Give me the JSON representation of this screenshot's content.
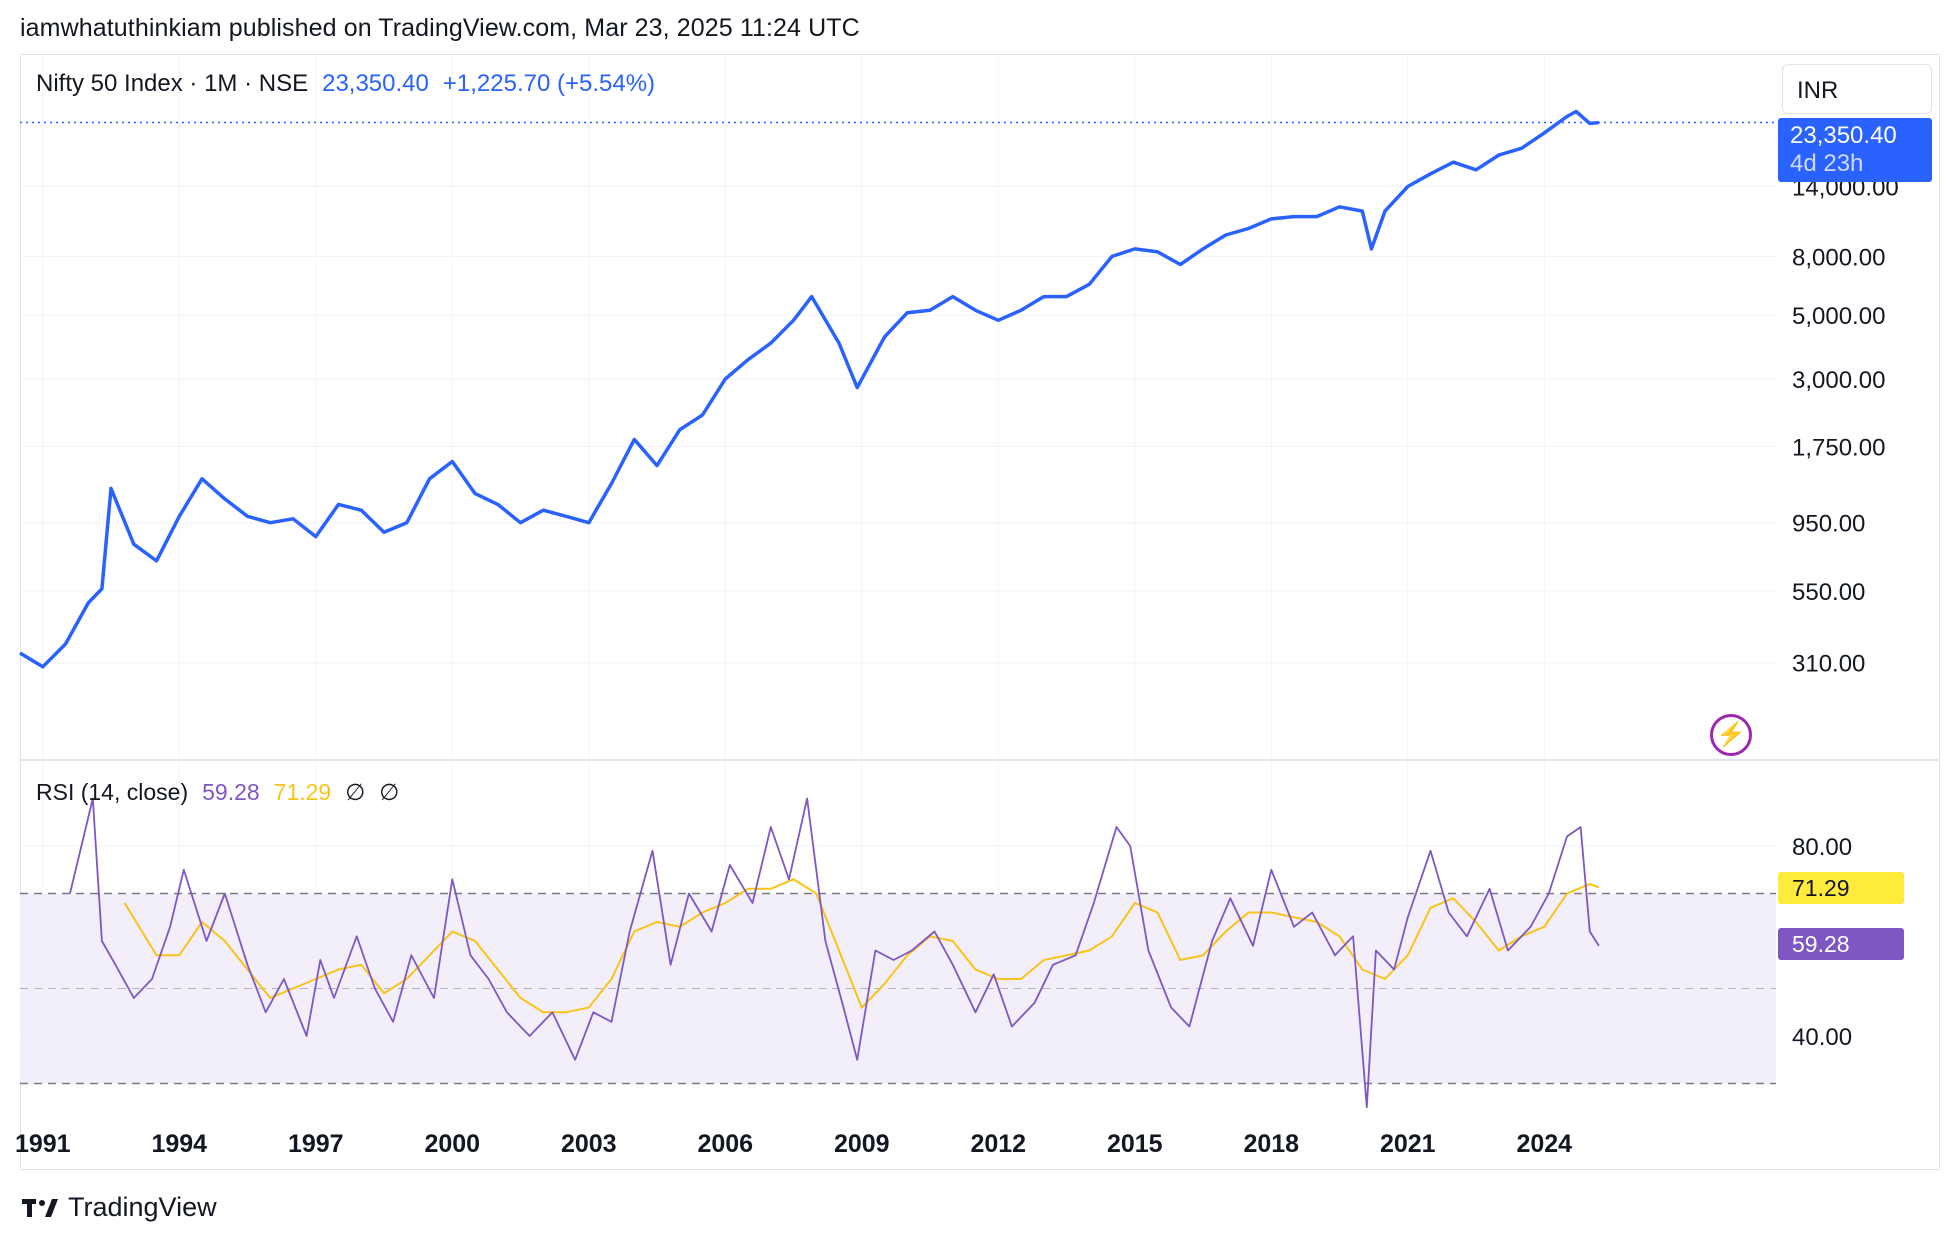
{
  "publish_line": "iamwhatuthinkiam published on TradingView.com, Mar 23, 2025 11:24 UTC",
  "legend": {
    "symbol": "Nifty 50 Index · 1M · NSE",
    "price": "23,350.40",
    "change": "+1,225.70 (+5.54%)"
  },
  "currency": "INR",
  "price_tag": {
    "price": "23,350.40",
    "countdown": "4d 23h"
  },
  "rsi_legend": {
    "name": "RSI (14, close)",
    "rsi": "59.28",
    "ma": "71.29",
    "sym1": "∅",
    "sym2": "∅"
  },
  "rsi_tags": {
    "ma": "71.29",
    "rsi": "59.28"
  },
  "footer_brand": "TradingView",
  "icons": {
    "logo": "tradingview-logo-icon",
    "bolt": "lightning-icon"
  },
  "colors": {
    "price_line": "#2962ff",
    "rsi_line": "#7e57c2",
    "ma_line": "#f9c31a",
    "rsi_band": "#f3effa"
  },
  "chart_data": [
    {
      "type": "line",
      "title": "Nifty 50 Index · 1M · NSE",
      "scale": "log",
      "y_ticks": [
        310,
        550,
        950,
        1750,
        3000,
        5000,
        8000,
        14000
      ],
      "y_tick_labels": [
        "310.00",
        "550.00",
        "950.00",
        "1,750.00",
        "3,000.00",
        "5,000.00",
        "8,000.00",
        "14,000.00"
      ],
      "x_ticks": [
        1991,
        1994,
        1997,
        2000,
        2003,
        2006,
        2009,
        2012,
        2015,
        2018,
        2021,
        2024
      ],
      "last_value": 23350.4,
      "series": [
        {
          "x": [
            1990.5,
            1991.0,
            1991.5,
            1992.0,
            1992.3,
            1992.5,
            1993.0,
            1993.5,
            1994.0,
            1994.5,
            1995.0,
            1995.5,
            1996.0,
            1996.5,
            1997.0,
            1997.5,
            1998.0,
            1998.5,
            1999.0,
            1999.5,
            2000.0,
            2000.5,
            2001.0,
            2001.5,
            2002.0,
            2002.5,
            2003.0,
            2003.5,
            2004.0,
            2004.5,
            2005.0,
            2005.5,
            2006.0,
            2006.5,
            2007.0,
            2007.5,
            2007.9,
            2008.5,
            2008.9,
            2009.5,
            2010.0,
            2010.5,
            2011.0,
            2011.5,
            2012.0,
            2012.5,
            2013.0,
            2013.5,
            2014.0,
            2014.5,
            2015.0,
            2015.5,
            2016.0,
            2016.5,
            2017.0,
            2017.5,
            2018.0,
            2018.5,
            2019.0,
            2019.5,
            2020.0,
            2020.2,
            2020.5,
            2021.0,
            2021.5,
            2022.0,
            2022.5,
            2023.0,
            2023.5,
            2024.0,
            2024.5,
            2024.7,
            2025.0,
            2025.2
          ],
          "y": [
            335,
            300,
            360,
            500,
            560,
            1250,
            800,
            700,
            1000,
            1350,
            1150,
            1000,
            950,
            980,
            850,
            1100,
            1050,
            880,
            950,
            1350,
            1550,
            1200,
            1100,
            950,
            1050,
            1000,
            950,
            1300,
            1850,
            1500,
            2000,
            2250,
            3000,
            3500,
            4000,
            4800,
            5800,
            4000,
            2800,
            4200,
            5100,
            5200,
            5800,
            5200,
            4800,
            5200,
            5800,
            5800,
            6400,
            8000,
            8500,
            8300,
            7500,
            8500,
            9500,
            10000,
            10800,
            11000,
            11000,
            11900,
            11500,
            8500,
            11500,
            14000,
            15500,
            17000,
            16000,
            18000,
            19000,
            21500,
            24500,
            25500,
            23200,
            23350
          ]
        }
      ]
    },
    {
      "type": "line",
      "title": "RSI (14, close)",
      "y_ticks": [
        40,
        80
      ],
      "y_tick_labels": [
        "40.00",
        "80.00"
      ],
      "bands": [
        70,
        50,
        30
      ],
      "series": [
        {
          "name": "RSI (14, close)",
          "x": [
            1991.6,
            1992.1,
            1992.3,
            1992.6,
            1993.0,
            1993.4,
            1993.8,
            1994.1,
            1994.6,
            1995.0,
            1995.5,
            1995.9,
            1996.3,
            1996.8,
            1997.1,
            1997.4,
            1997.9,
            1998.3,
            1998.7,
            1999.1,
            1999.6,
            2000.0,
            2000.4,
            2000.8,
            2001.2,
            2001.7,
            2002.2,
            2002.7,
            2003.1,
            2003.5,
            2003.9,
            2004.4,
            2004.8,
            2005.2,
            2005.7,
            2006.1,
            2006.6,
            2007.0,
            2007.4,
            2007.8,
            2008.2,
            2008.6,
            2008.9,
            2009.3,
            2009.7,
            2010.1,
            2010.6,
            2011.0,
            2011.5,
            2011.9,
            2012.3,
            2012.8,
            2013.2,
            2013.7,
            2014.1,
            2014.6,
            2014.9,
            2015.3,
            2015.8,
            2016.2,
            2016.7,
            2017.1,
            2017.6,
            2018.0,
            2018.5,
            2018.9,
            2019.4,
            2019.8,
            2020.1,
            2020.3,
            2020.7,
            2021.0,
            2021.5,
            2021.9,
            2022.3,
            2022.8,
            2023.2,
            2023.7,
            2024.1,
            2024.5,
            2024.8,
            2025.0,
            2025.2
          ],
          "y": [
            70,
            90,
            60,
            55,
            48,
            52,
            63,
            75,
            60,
            70,
            55,
            45,
            52,
            40,
            56,
            48,
            61,
            50,
            43,
            57,
            48,
            73,
            57,
            52,
            45,
            40,
            45,
            35,
            45,
            43,
            62,
            79,
            55,
            70,
            62,
            76,
            68,
            84,
            73,
            90,
            60,
            46,
            35,
            58,
            56,
            58,
            62,
            55,
            45,
            53,
            42,
            47,
            55,
            57,
            68,
            84,
            80,
            58,
            46,
            42,
            60,
            69,
            59,
            75,
            63,
            66,
            57,
            61,
            25,
            58,
            54,
            65,
            79,
            66,
            61,
            71,
            58,
            63,
            70,
            82,
            84,
            62,
            59
          ]
        },
        {
          "name": "MA",
          "x": [
            1992.8,
            1993.5,
            1994.0,
            1994.5,
            1995.0,
            1995.5,
            1996.0,
            1996.5,
            1997.0,
            1997.5,
            1998.0,
            1998.5,
            1999.0,
            1999.5,
            2000.0,
            2000.5,
            2001.0,
            2001.5,
            2002.0,
            2002.5,
            2003.0,
            2003.5,
            2004.0,
            2004.5,
            2005.0,
            2005.5,
            2006.0,
            2006.5,
            2007.0,
            2007.5,
            2008.0,
            2008.5,
            2009.0,
            2009.5,
            2010.0,
            2010.5,
            2011.0,
            2011.5,
            2012.0,
            2012.5,
            2013.0,
            2013.5,
            2014.0,
            2014.5,
            2015.0,
            2015.5,
            2016.0,
            2016.5,
            2017.0,
            2017.5,
            2018.0,
            2018.5,
            2019.0,
            2019.5,
            2020.0,
            2020.5,
            2021.0,
            2021.5,
            2022.0,
            2022.5,
            2023.0,
            2023.5,
            2024.0,
            2024.5,
            2025.0,
            2025.2
          ],
          "y": [
            68,
            57,
            57,
            64,
            60,
            54,
            48,
            50,
            52,
            54,
            55,
            49,
            52,
            57,
            62,
            60,
            54,
            48,
            45,
            45,
            46,
            52,
            62,
            64,
            63,
            66,
            68,
            71,
            71,
            73,
            70,
            58,
            46,
            51,
            57,
            61,
            60,
            54,
            52,
            52,
            56,
            57,
            58,
            61,
            68,
            66,
            56,
            57,
            62,
            66,
            66,
            65,
            64,
            61,
            54,
            52,
            57,
            67,
            69,
            64,
            58,
            61,
            63,
            70,
            72,
            71.29
          ]
        }
      ]
    }
  ]
}
